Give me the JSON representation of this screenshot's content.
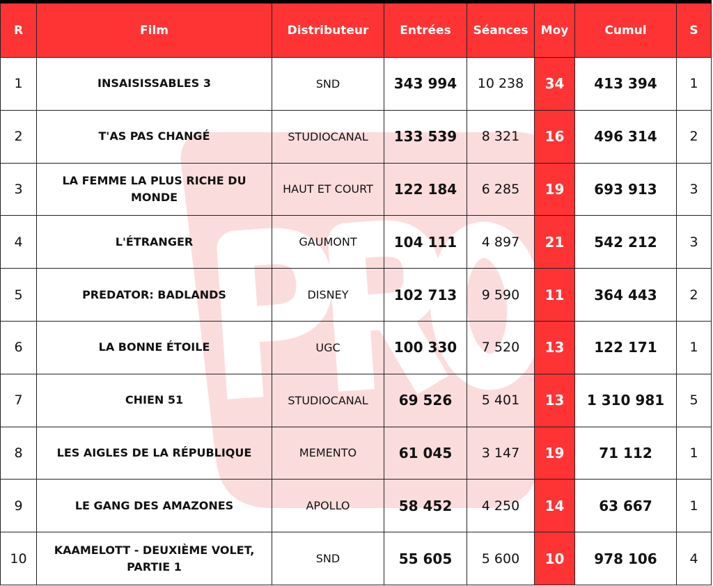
{
  "watermark": {
    "text": "PRO",
    "color": "#fbd9d9"
  },
  "colors": {
    "header": "#fe3334",
    "moy_column": "#fe3334"
  },
  "headers": {
    "rank": "R",
    "film": "Film",
    "distributor": "Distributeur",
    "admissions": "Entrées",
    "screenings": "Séances",
    "average": "Moy",
    "cumulative": "Cumul",
    "weeks": "S"
  },
  "rows": [
    {
      "rank": "1",
      "film": "INSAISISSABLES 3",
      "distributor": "SND",
      "admissions": "343 994",
      "screenings": "10 238",
      "average": "34",
      "cumulative": "413 394",
      "weeks": "1"
    },
    {
      "rank": "2",
      "film": "T'AS PAS CHANGÉ",
      "distributor": "STUDIOCANAL",
      "admissions": "133 539",
      "screenings": "8 321",
      "average": "16",
      "cumulative": "496 314",
      "weeks": "2"
    },
    {
      "rank": "3",
      "film": "LA FEMME LA PLUS RICHE DU MONDE",
      "distributor": "HAUT ET COURT",
      "admissions": "122 184",
      "screenings": "6 285",
      "average": "19",
      "cumulative": "693 913",
      "weeks": "3"
    },
    {
      "rank": "4",
      "film": "L'ÉTRANGER",
      "distributor": "GAUMONT",
      "admissions": "104 111",
      "screenings": "4 897",
      "average": "21",
      "cumulative": "542 212",
      "weeks": "3"
    },
    {
      "rank": "5",
      "film": "PREDATOR: BADLANDS",
      "distributor": "DISNEY",
      "admissions": "102 713",
      "screenings": "9 590",
      "average": "11",
      "cumulative": "364 443",
      "weeks": "2"
    },
    {
      "rank": "6",
      "film": "LA BONNE ÉTOILE",
      "distributor": "UGC",
      "admissions": "100 330",
      "screenings": "7 520",
      "average": "13",
      "cumulative": "122 171",
      "weeks": "1"
    },
    {
      "rank": "7",
      "film": "CHIEN 51",
      "distributor": "STUDIOCANAL",
      "admissions": "69 526",
      "screenings": "5 401",
      "average": "13",
      "cumulative": "1 310 981",
      "weeks": "5"
    },
    {
      "rank": "8",
      "film": "LES AIGLES DE LA RÉPUBLIQUE",
      "distributor": "MEMENTO",
      "admissions": "61 045",
      "screenings": "3 147",
      "average": "19",
      "cumulative": "71 112",
      "weeks": "1"
    },
    {
      "rank": "9",
      "film": "LE GANG DES AMAZONES",
      "distributor": "APOLLO",
      "admissions": "58 452",
      "screenings": "4 250",
      "average": "14",
      "cumulative": "63 667",
      "weeks": "1"
    },
    {
      "rank": "10",
      "film": "KAAMELOTT - DEUXIÈME VOLET, PARTIE 1",
      "distributor": "SND",
      "admissions": "55 605",
      "screenings": "5 600",
      "average": "10",
      "cumulative": "978 106",
      "weeks": "4"
    }
  ]
}
